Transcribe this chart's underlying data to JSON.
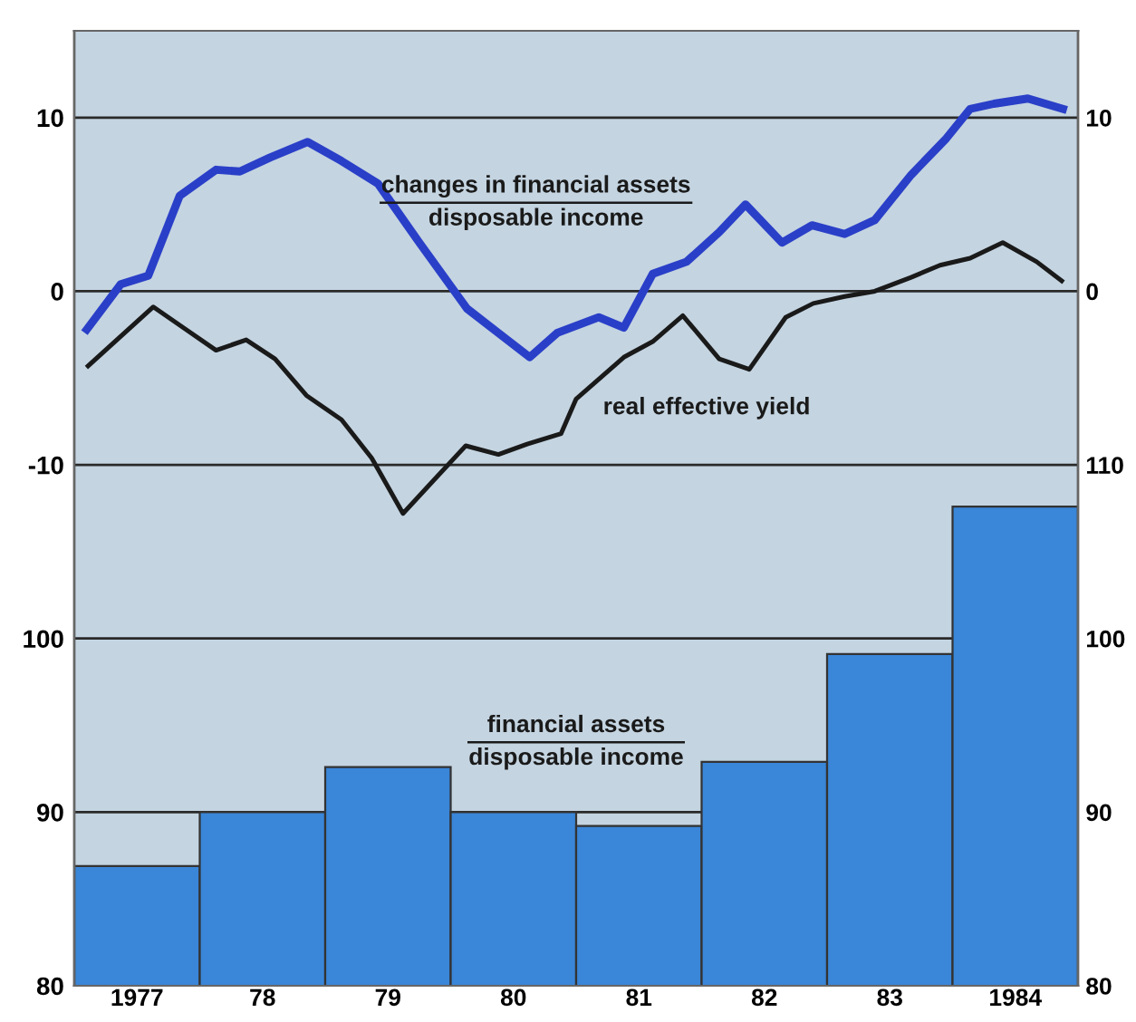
{
  "chart_data": [
    {
      "type": "line",
      "xlim": [
        1976.5,
        1984.5
      ],
      "ylim": [
        -40,
        15
      ],
      "yticks": [
        -10,
        0,
        10
      ],
      "y2lim": [
        -40,
        15
      ],
      "y2ticks": [
        0,
        10
      ],
      "grid": "y",
      "tick_labels": "y",
      "legend": false,
      "series": [
        {
          "name": "changes in financial assets\ndisposable income",
          "color": "#2a3fc8",
          "x": [
            1976.6,
            1976.87,
            1977.09,
            1977.34,
            1977.63,
            1977.82,
            1978.06,
            1978.36,
            1978.63,
            1978.92,
            1979.25,
            1979.63,
            1979.88,
            1980.13,
            1980.35,
            1980.68,
            1980.88,
            1981.11,
            1981.38,
            1981.64,
            1981.85,
            1982.14,
            1982.38,
            1982.64,
            1982.88,
            1983.17,
            1983.45,
            1983.64,
            1983.83,
            1984.1,
            1984.38
          ],
          "values": [
            -2.2,
            0.4,
            0.9,
            5.5,
            7.0,
            6.9,
            7.7,
            8.6,
            7.5,
            6.2,
            2.8,
            -1.0,
            -2.4,
            -3.8,
            -2.4,
            -1.5,
            -2.1,
            1.0,
            1.7,
            3.4,
            5.0,
            2.8,
            3.8,
            3.3,
            4.1,
            6.7,
            8.8,
            10.5,
            10.8,
            11.1,
            10.5
          ]
        },
        {
          "name": "real effective yield",
          "color": "#1a1a1a",
          "x": [
            1976.61,
            1977.13,
            1977.37,
            1977.63,
            1977.87,
            1978.1,
            1978.35,
            1978.63,
            1978.87,
            1979.12,
            1979.35,
            1979.62,
            1979.88,
            1980.11,
            1980.38,
            1980.5,
            1980.88,
            1981.11,
            1981.35,
            1981.64,
            1981.88,
            1982.17,
            1982.39,
            1982.64,
            1982.88,
            1983.17,
            1983.4,
            1983.64,
            1983.9,
            1984.17,
            1984.37
          ],
          "values": [
            -4.3,
            -0.9,
            -2.1,
            -3.4,
            -2.8,
            -3.9,
            -6.0,
            -7.4,
            -9.6,
            -12.8,
            -11.0,
            -8.9,
            -9.4,
            -8.8,
            -8.2,
            -6.2,
            -3.8,
            -2.9,
            -1.4,
            -3.9,
            -4.5,
            -1.5,
            -0.7,
            -0.3,
            0.0,
            0.8,
            1.5,
            1.9,
            2.8,
            1.7,
            0.6
          ]
        }
      ]
    },
    {
      "type": "bar",
      "xlim": [
        1976.5,
        1984.5
      ],
      "xticks": [
        {
          "value": 1977,
          "label": "1977"
        },
        {
          "value": 1978,
          "label": "78"
        },
        {
          "value": 1979,
          "label": "79"
        },
        {
          "value": 1980,
          "label": "80"
        },
        {
          "value": 1981,
          "label": "81"
        },
        {
          "value": 1982,
          "label": "82"
        },
        {
          "value": 1983,
          "label": "83"
        },
        {
          "value": 1984,
          "label": "1984"
        }
      ],
      "ylim": [
        80,
        135
      ],
      "yticks": [
        80,
        90,
        100
      ],
      "y2lim": [
        80,
        135
      ],
      "y2ticks": [
        80,
        90,
        100,
        110
      ],
      "grid": "y",
      "legend": false,
      "series": [
        {
          "name": "financial assets\ndisposable income",
          "color": "#3a86d8",
          "x": [
            1977,
            1978,
            1979,
            1980,
            1981,
            1982,
            1983,
            1984
          ],
          "values": [
            86.9,
            90.0,
            92.6,
            90.0,
            89.2,
            92.9,
            99.1,
            107.6
          ]
        }
      ]
    }
  ]
}
